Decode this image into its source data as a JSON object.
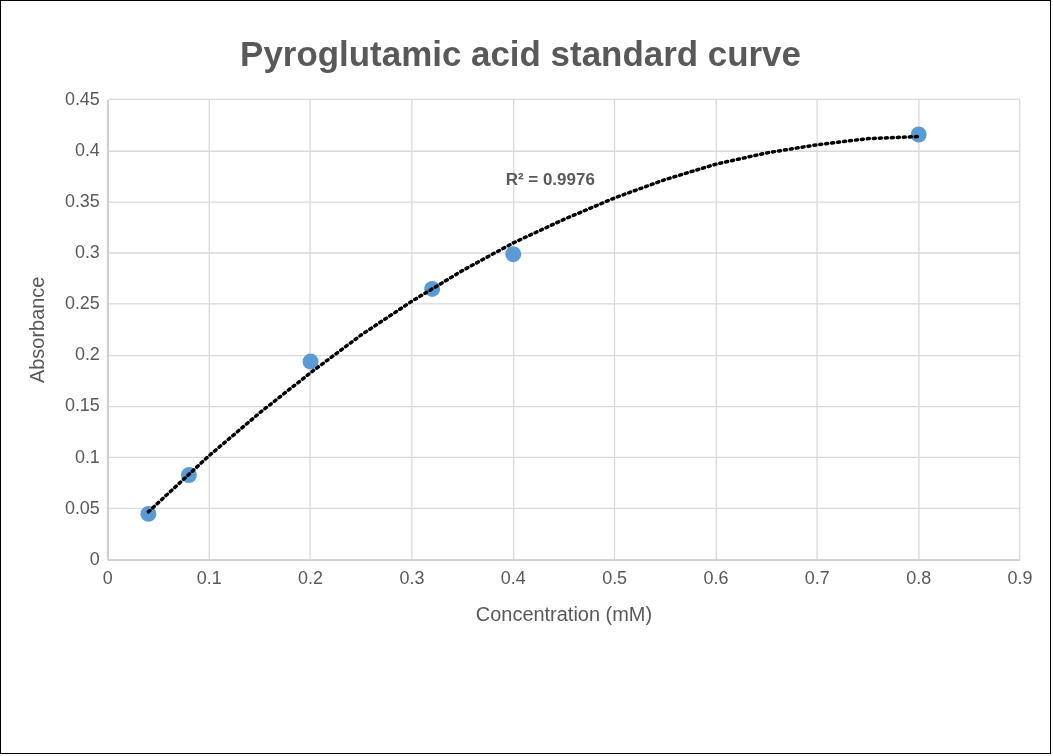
{
  "chart_data": {
    "type": "scatter",
    "title": "Pyroglutamic acid standard curve",
    "xlabel": "Concentration (mM)",
    "ylabel": "Absorbance",
    "xlim": [
      0,
      0.9
    ],
    "xticks": [
      0,
      0.1,
      0.2,
      0.3,
      0.4,
      0.5,
      0.6,
      0.7,
      0.8,
      0.9
    ],
    "ylim": [
      0,
      0.45
    ],
    "yticks": [
      0,
      0.05,
      0.1,
      0.15,
      0.2,
      0.25,
      0.3,
      0.35,
      0.4,
      0.45
    ],
    "grid": true,
    "legend": false,
    "series": [
      {
        "color": "#5b9bd5",
        "marker": "circle",
        "x": [
          0.04,
          0.08,
          0.2,
          0.32,
          0.4,
          0.8
        ],
        "values": [
          0.045,
          0.083,
          0.194,
          0.265,
          0.299,
          0.416
        ]
      },
      {
        "type": "line",
        "color": "#000000",
        "marker": "none",
        "line_style": "dotted",
        "x": [
          0.04,
          0.1,
          0.15,
          0.2,
          0.25,
          0.3,
          0.35,
          0.4,
          0.45,
          0.5,
          0.55,
          0.6,
          0.65,
          0.7,
          0.75,
          0.8
        ],
        "values": [
          0.047,
          0.102,
          0.144,
          0.183,
          0.22,
          0.253,
          0.283,
          0.31,
          0.333,
          0.354,
          0.372,
          0.387,
          0.398,
          0.406,
          0.412,
          0.414
        ]
      }
    ],
    "annotations": [
      "R² = 0.9976"
    ]
  }
}
